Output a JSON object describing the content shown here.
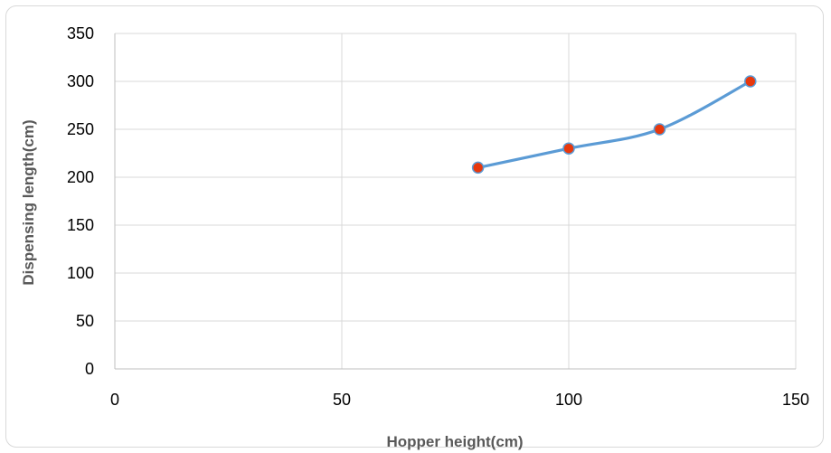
{
  "chart_data": {
    "type": "line",
    "title": "",
    "xlabel": "Hopper height(cm)",
    "ylabel": "Dispensing length(cm)",
    "xlim": [
      0,
      150
    ],
    "ylim": [
      0,
      350
    ],
    "xticks": [
      0,
      50,
      100,
      150
    ],
    "yticks": [
      0,
      50,
      100,
      150,
      200,
      250,
      300,
      350
    ],
    "grid": true,
    "legend": "none",
    "smooth": true,
    "series": [
      {
        "x": [
          80,
          100,
          120,
          140
        ],
        "y": [
          210,
          230,
          250,
          300
        ],
        "line_color": "#5b9bd5",
        "marker_fill": "#e8380d",
        "marker_stroke": "#5b9bd5"
      }
    ]
  }
}
